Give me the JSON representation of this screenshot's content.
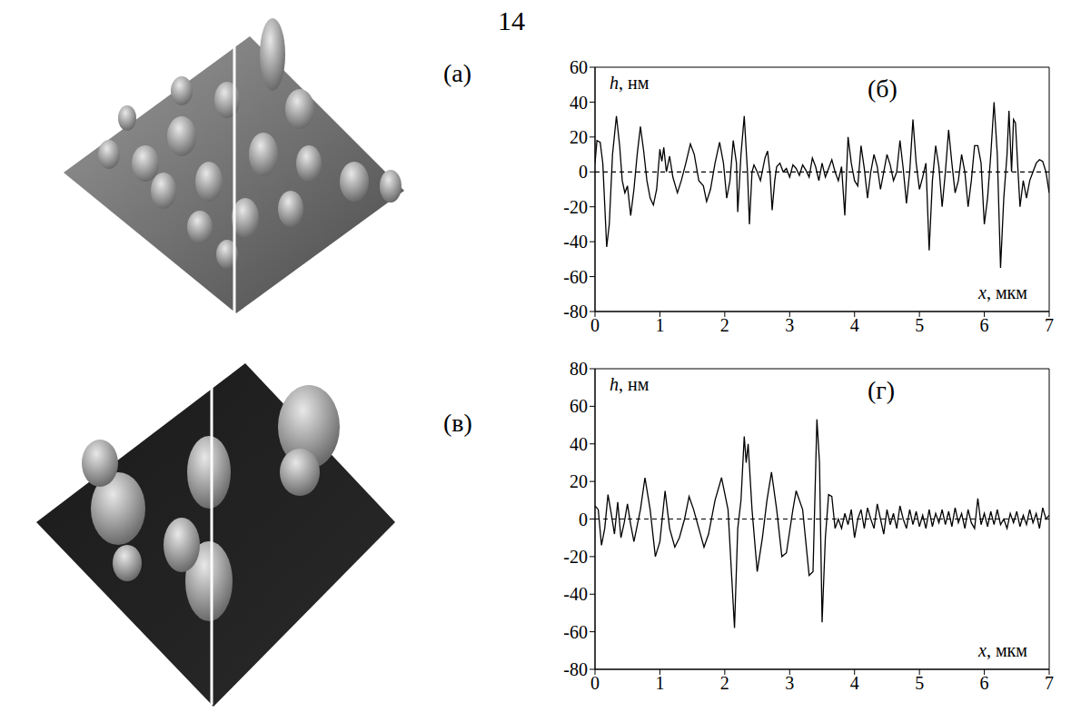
{
  "page": "14",
  "images": [
    {
      "label": "(а)"
    },
    {
      "label": "(в)"
    }
  ],
  "chart_data": [
    {
      "type": "line",
      "annotation": "(б)",
      "x_label": "x, мкм",
      "y_label": "h, нм",
      "color": "#000000",
      "line_style": "solid",
      "baseline": 0,
      "xlim": [
        0,
        7
      ],
      "xticks": [
        0,
        1,
        2,
        3,
        4,
        5,
        6,
        7
      ],
      "ylim": [
        -80,
        60
      ],
      "yticks": [
        -80,
        -60,
        -40,
        -20,
        0,
        20,
        40,
        60
      ],
      "x": [
        0,
        0.03,
        0.08,
        0.12,
        0.18,
        0.22,
        0.27,
        0.33,
        0.38,
        0.42,
        0.46,
        0.5,
        0.55,
        0.6,
        0.65,
        0.7,
        0.75,
        0.8,
        0.85,
        0.9,
        0.95,
        1.0,
        1.03,
        1.06,
        1.1,
        1.15,
        1.2,
        1.27,
        1.33,
        1.4,
        1.47,
        1.53,
        1.6,
        1.67,
        1.72,
        1.78,
        1.85,
        1.92,
        1.98,
        2.03,
        2.08,
        2.13,
        2.18,
        2.2,
        2.25,
        2.3,
        2.35,
        2.38,
        2.42,
        2.45,
        2.5,
        2.55,
        2.62,
        2.66,
        2.7,
        2.73,
        2.77,
        2.8,
        2.85,
        2.9,
        2.95,
        3.0,
        3.05,
        3.1,
        3.15,
        3.2,
        3.25,
        3.3,
        3.35,
        3.4,
        3.45,
        3.5,
        3.55,
        3.6,
        3.65,
        3.7,
        3.75,
        3.8,
        3.85,
        3.9,
        3.95,
        4.0,
        4.05,
        4.1,
        4.15,
        4.2,
        4.25,
        4.3,
        4.35,
        4.4,
        4.45,
        4.5,
        4.55,
        4.6,
        4.65,
        4.7,
        4.75,
        4.8,
        4.85,
        4.9,
        4.95,
        5.0,
        5.05,
        5.1,
        5.15,
        5.2,
        5.25,
        5.3,
        5.35,
        5.4,
        5.45,
        5.5,
        5.55,
        5.6,
        5.65,
        5.7,
        5.75,
        5.8,
        5.85,
        5.9,
        5.95,
        6.0,
        6.05,
        6.1,
        6.15,
        6.2,
        6.25,
        6.3,
        6.35,
        6.38,
        6.42,
        6.45,
        6.48,
        6.52,
        6.55,
        6.6,
        6.65,
        6.7,
        6.75,
        6.8,
        6.85,
        6.9,
        6.95,
        7.0
      ],
      "values": [
        5,
        18,
        17,
        5,
        -43,
        -30,
        10,
        32,
        15,
        -5,
        -12,
        -8,
        -25,
        -10,
        10,
        26,
        12,
        -5,
        -15,
        -19,
        -10,
        13,
        6,
        14,
        0,
        9,
        -3,
        -12,
        -5,
        5,
        16,
        10,
        -5,
        -8,
        -17,
        -10,
        5,
        17,
        5,
        -15,
        -5,
        18,
        5,
        -23,
        10,
        32,
        0,
        -30,
        0,
        4,
        0,
        -5,
        8,
        12,
        -2,
        -22,
        -5,
        3,
        5,
        0,
        2,
        -3,
        4,
        2,
        -2,
        4,
        1,
        -3,
        8,
        3,
        -5,
        5,
        -3,
        2,
        7,
        0,
        -5,
        3,
        -25,
        20,
        5,
        -5,
        -8,
        15,
        2,
        -15,
        0,
        10,
        3,
        -10,
        0,
        10,
        4,
        -5,
        0,
        18,
        2,
        -18,
        0,
        30,
        5,
        -10,
        -3,
        5,
        -45,
        -5,
        15,
        3,
        -20,
        0,
        24,
        5,
        -12,
        -5,
        10,
        0,
        -20,
        -5,
        15,
        15,
        5,
        -30,
        -15,
        10,
        40,
        10,
        -55,
        -15,
        10,
        35,
        0,
        30,
        28,
        0,
        -20,
        -5,
        -15,
        -5,
        0,
        5,
        7,
        6,
        0,
        -12
      ]
    },
    {
      "type": "line",
      "annotation": "(г)",
      "x_label": "x, мкм",
      "y_label": "h, нм",
      "color": "#000000",
      "line_style": "solid",
      "baseline": 0,
      "xlim": [
        0,
        7
      ],
      "xticks": [
        0,
        1,
        2,
        3,
        4,
        5,
        6,
        7
      ],
      "ylim": [
        -80,
        80
      ],
      "yticks": [
        -80,
        -60,
        -40,
        -20,
        0,
        20,
        40,
        60,
        80
      ],
      "x": [
        0,
        0.05,
        0.1,
        0.15,
        0.2,
        0.25,
        0.3,
        0.35,
        0.4,
        0.45,
        0.5,
        0.55,
        0.6,
        0.7,
        0.77,
        0.85,
        0.93,
        1.0,
        1.08,
        1.15,
        1.23,
        1.3,
        1.38,
        1.45,
        1.52,
        1.6,
        1.68,
        1.75,
        1.85,
        1.95,
        2.05,
        2.15,
        2.2,
        2.25,
        2.3,
        2.33,
        2.36,
        2.42,
        2.5,
        2.58,
        2.65,
        2.72,
        2.8,
        2.88,
        2.95,
        3.05,
        3.1,
        3.2,
        3.3,
        3.36,
        3.42,
        3.46,
        3.5,
        3.55,
        3.6,
        3.65,
        3.7,
        3.75,
        3.8,
        3.85,
        3.9,
        3.95,
        4.0,
        4.05,
        4.1,
        4.15,
        4.2,
        4.25,
        4.3,
        4.35,
        4.4,
        4.45,
        4.5,
        4.55,
        4.6,
        4.65,
        4.7,
        4.75,
        4.8,
        4.85,
        4.9,
        4.95,
        5.0,
        5.05,
        5.1,
        5.15,
        5.2,
        5.25,
        5.3,
        5.35,
        5.4,
        5.45,
        5.5,
        5.55,
        5.6,
        5.65,
        5.7,
        5.75,
        5.8,
        5.85,
        5.9,
        5.95,
        6.0,
        6.05,
        6.1,
        6.15,
        6.2,
        6.25,
        6.3,
        6.35,
        6.4,
        6.45,
        6.5,
        6.55,
        6.6,
        6.65,
        6.7,
        6.75,
        6.8,
        6.85,
        6.9,
        6.95,
        7.0
      ],
      "values": [
        7,
        5,
        -14,
        -5,
        13,
        3,
        -8,
        9,
        -10,
        -2,
        8,
        -3,
        -12,
        5,
        22,
        5,
        -20,
        -12,
        15,
        -5,
        -15,
        -10,
        0,
        12,
        5,
        -5,
        -15,
        -8,
        10,
        22,
        5,
        -58,
        -5,
        10,
        44,
        30,
        40,
        5,
        -28,
        -10,
        10,
        25,
        5,
        -20,
        -18,
        5,
        15,
        5,
        -30,
        -28,
        53,
        30,
        -55,
        -10,
        13,
        12,
        -5,
        0,
        -5,
        3,
        -3,
        5,
        -10,
        0,
        5,
        -5,
        6,
        0,
        -5,
        8,
        0,
        -8,
        5,
        -3,
        3,
        -5,
        7,
        0,
        -5,
        5,
        -3,
        4,
        -4,
        2,
        -5,
        5,
        -4,
        3,
        -2,
        5,
        -3,
        4,
        -4,
        6,
        -2,
        3,
        -5,
        5,
        -2,
        -5,
        11,
        -3,
        3,
        -4,
        4,
        -3,
        5,
        -3,
        0,
        -5,
        3,
        -2,
        4,
        -4,
        2,
        -3,
        5,
        -2,
        3,
        -5,
        6,
        0,
        2
      ]
    }
  ]
}
